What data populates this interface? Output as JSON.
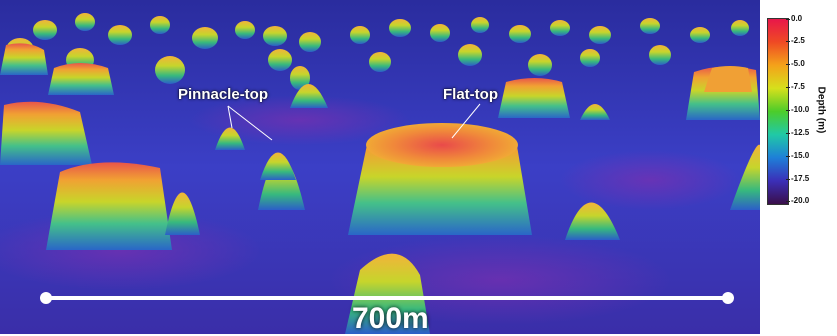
{
  "annotations": {
    "pinnacle_label": "Pinnacle-top",
    "flat_label": "Flat-top"
  },
  "scale_bar": {
    "label": "700m"
  },
  "legend": {
    "title": "Depth (m)",
    "ticks": [
      "0.0",
      "-2.5",
      "-5.0",
      "-7.5",
      "-10.0",
      "-12.5",
      "-15.0",
      "-17.5",
      "-20.0"
    ],
    "colors": [
      "#e8174a",
      "#ef4a24",
      "#f4a21a",
      "#d6e01c",
      "#4ccc2a",
      "#20c9a6",
      "#1e7fd8",
      "#3b2fb8",
      "#3a0f4a"
    ]
  }
}
